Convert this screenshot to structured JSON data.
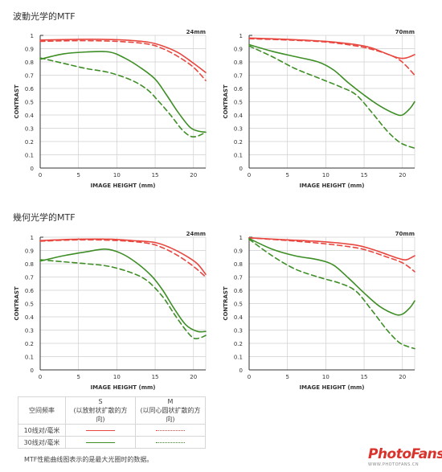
{
  "sections": [
    {
      "title": "波動光学的MTF"
    },
    {
      "title": "幾何光学的MTF"
    }
  ],
  "colors": {
    "s10": "#e8473f",
    "m10": "#e8473f",
    "s30": "#3e8e26",
    "m30": "#3e8e26",
    "grid": "#cfcfcf",
    "axis": "#333333"
  },
  "chart_data": [
    {
      "type": "line",
      "title": "24mm",
      "xlabel": "IMAGE HEIGHT (mm)",
      "ylabel": "CONTRAST",
      "xlim": [
        0,
        21.6
      ],
      "ylim": [
        0,
        1
      ],
      "xticks": [
        0,
        5,
        10,
        15,
        20
      ],
      "yticks": [
        0,
        0.1,
        0.2,
        0.3,
        0.4,
        0.5,
        0.6,
        0.7,
        0.8,
        0.9,
        1
      ],
      "series": [
        {
          "name": "10线对/毫米 S",
          "style": "solid",
          "colorKey": "s10",
          "points": [
            [
              0,
              0.965
            ],
            [
              5,
              0.97
            ],
            [
              8,
              0.97
            ],
            [
              11,
              0.965
            ],
            [
              14,
              0.95
            ],
            [
              16,
              0.92
            ],
            [
              18,
              0.87
            ],
            [
              20,
              0.79
            ],
            [
              21.6,
              0.72
            ]
          ]
        },
        {
          "name": "10线对/毫米 M",
          "style": "dashed",
          "colorKey": "m10",
          "points": [
            [
              0,
              0.955
            ],
            [
              5,
              0.96
            ],
            [
              10,
              0.955
            ],
            [
              14,
              0.935
            ],
            [
              16,
              0.9
            ],
            [
              18,
              0.84
            ],
            [
              20,
              0.76
            ],
            [
              21.6,
              0.66
            ]
          ]
        },
        {
          "name": "30线对/毫米 S",
          "style": "solid",
          "colorKey": "s30",
          "points": [
            [
              0,
              0.82
            ],
            [
              3,
              0.86
            ],
            [
              6,
              0.875
            ],
            [
              9,
              0.875
            ],
            [
              11,
              0.83
            ],
            [
              13,
              0.76
            ],
            [
              15,
              0.67
            ],
            [
              16.5,
              0.55
            ],
            [
              18,
              0.42
            ],
            [
              19.5,
              0.31
            ],
            [
              20.5,
              0.28
            ],
            [
              21.6,
              0.27
            ]
          ]
        },
        {
          "name": "30线对/毫米 M",
          "style": "dashed",
          "colorKey": "m30",
          "points": [
            [
              0,
              0.83
            ],
            [
              3,
              0.79
            ],
            [
              6,
              0.75
            ],
            [
              9,
              0.72
            ],
            [
              12,
              0.66
            ],
            [
              14,
              0.59
            ],
            [
              15.5,
              0.5
            ],
            [
              17,
              0.4
            ],
            [
              18.5,
              0.29
            ],
            [
              19.6,
              0.24
            ],
            [
              20.5,
              0.24
            ],
            [
              21.6,
              0.27
            ]
          ]
        }
      ]
    },
    {
      "type": "line",
      "title": "70mm",
      "xlabel": "IMAGE HEIGHT (mm)",
      "ylabel": "CONTRAST",
      "xlim": [
        0,
        21.6
      ],
      "ylim": [
        0,
        1
      ],
      "xticks": [
        0,
        5,
        10,
        15,
        20
      ],
      "yticks": [
        0,
        0.1,
        0.2,
        0.3,
        0.4,
        0.5,
        0.6,
        0.7,
        0.8,
        0.9,
        1
      ],
      "series": [
        {
          "name": "10线对/毫米 S",
          "style": "solid",
          "colorKey": "s10",
          "points": [
            [
              0,
              0.98
            ],
            [
              5,
              0.97
            ],
            [
              10,
              0.955
            ],
            [
              14,
              0.93
            ],
            [
              16,
              0.905
            ],
            [
              18,
              0.86
            ],
            [
              19.5,
              0.83
            ],
            [
              20.5,
              0.83
            ],
            [
              21.6,
              0.855
            ]
          ]
        },
        {
          "name": "10线对/毫米 M",
          "style": "dashed",
          "colorKey": "m10",
          "points": [
            [
              0,
              0.975
            ],
            [
              5,
              0.965
            ],
            [
              10,
              0.95
            ],
            [
              14,
              0.92
            ],
            [
              16,
              0.895
            ],
            [
              18,
              0.86
            ],
            [
              19.5,
              0.82
            ],
            [
              20.5,
              0.77
            ],
            [
              21.6,
              0.7
            ]
          ]
        },
        {
          "name": "30线对/毫米 S",
          "style": "solid",
          "colorKey": "s30",
          "points": [
            [
              0,
              0.93
            ],
            [
              3,
              0.88
            ],
            [
              6,
              0.84
            ],
            [
              9,
              0.8
            ],
            [
              11,
              0.74
            ],
            [
              13,
              0.64
            ],
            [
              15,
              0.55
            ],
            [
              17,
              0.47
            ],
            [
              19,
              0.41
            ],
            [
              20,
              0.4
            ],
            [
              21,
              0.45
            ],
            [
              21.6,
              0.5
            ]
          ]
        },
        {
          "name": "30线对/毫米 M",
          "style": "dashed",
          "colorKey": "m30",
          "points": [
            [
              0,
              0.92
            ],
            [
              3,
              0.84
            ],
            [
              6,
              0.75
            ],
            [
              9,
              0.68
            ],
            [
              12,
              0.61
            ],
            [
              14,
              0.55
            ],
            [
              16,
              0.42
            ],
            [
              18,
              0.28
            ],
            [
              19.5,
              0.2
            ],
            [
              20.5,
              0.17
            ],
            [
              21.6,
              0.15
            ]
          ]
        }
      ]
    },
    {
      "type": "line",
      "title": "24mm",
      "xlabel": "IMAGE HEIGHT (mm)",
      "ylabel": "CONTRAST",
      "xlim": [
        0,
        21.6
      ],
      "ylim": [
        0,
        1
      ],
      "xticks": [
        0,
        5,
        10,
        15,
        20
      ],
      "yticks": [
        0,
        0.1,
        0.2,
        0.3,
        0.4,
        0.5,
        0.6,
        0.7,
        0.8,
        0.9,
        1
      ],
      "series": [
        {
          "name": "10线对/毫米 S",
          "style": "solid",
          "colorKey": "s10",
          "points": [
            [
              0,
              0.975
            ],
            [
              5,
              0.985
            ],
            [
              9,
              0.985
            ],
            [
              12,
              0.975
            ],
            [
              15,
              0.96
            ],
            [
              17,
              0.92
            ],
            [
              19,
              0.86
            ],
            [
              20.5,
              0.8
            ],
            [
              21.6,
              0.72
            ]
          ]
        },
        {
          "name": "10线对/毫米 M",
          "style": "dashed",
          "colorKey": "m10",
          "points": [
            [
              0,
              0.97
            ],
            [
              5,
              0.98
            ],
            [
              10,
              0.975
            ],
            [
              14,
              0.955
            ],
            [
              16,
              0.92
            ],
            [
              18,
              0.86
            ],
            [
              20,
              0.78
            ],
            [
              21.6,
              0.7
            ]
          ]
        },
        {
          "name": "30线对/毫米 S",
          "style": "solid",
          "colorKey": "s30",
          "points": [
            [
              0,
              0.82
            ],
            [
              3,
              0.86
            ],
            [
              6,
              0.89
            ],
            [
              8.5,
              0.91
            ],
            [
              10.5,
              0.88
            ],
            [
              12.5,
              0.81
            ],
            [
              14.5,
              0.71
            ],
            [
              16,
              0.6
            ],
            [
              17.5,
              0.46
            ],
            [
              19,
              0.34
            ],
            [
              20.5,
              0.29
            ],
            [
              21.6,
              0.29
            ]
          ]
        },
        {
          "name": "30线对/毫米 M",
          "style": "dashed",
          "colorKey": "m30",
          "points": [
            [
              0,
              0.83
            ],
            [
              3,
              0.815
            ],
            [
              6,
              0.8
            ],
            [
              9,
              0.78
            ],
            [
              12,
              0.73
            ],
            [
              14,
              0.67
            ],
            [
              16,
              0.55
            ],
            [
              17.5,
              0.42
            ],
            [
              19,
              0.3
            ],
            [
              20,
              0.24
            ],
            [
              20.8,
              0.24
            ],
            [
              21.6,
              0.26
            ]
          ]
        }
      ]
    },
    {
      "type": "line",
      "title": "70mm",
      "xlabel": "IMAGE HEIGHT (mm)",
      "ylabel": "CONTRAST",
      "xlim": [
        0,
        21.6
      ],
      "ylim": [
        0,
        1
      ],
      "xticks": [
        0,
        5,
        10,
        15,
        20
      ],
      "yticks": [
        0,
        0.1,
        0.2,
        0.3,
        0.4,
        0.5,
        0.6,
        0.7,
        0.8,
        0.9,
        1
      ],
      "series": [
        {
          "name": "10线对/毫米 S",
          "style": "solid",
          "colorKey": "s10",
          "points": [
            [
              0,
              0.995
            ],
            [
              5,
              0.98
            ],
            [
              10,
              0.965
            ],
            [
              14,
              0.94
            ],
            [
              16,
              0.91
            ],
            [
              18,
              0.87
            ],
            [
              19.5,
              0.84
            ],
            [
              20.5,
              0.83
            ],
            [
              21.6,
              0.86
            ]
          ]
        },
        {
          "name": "10线对/毫米 M",
          "style": "dashed",
          "colorKey": "m10",
          "points": [
            [
              0,
              0.995
            ],
            [
              5,
              0.975
            ],
            [
              10,
              0.95
            ],
            [
              14,
              0.92
            ],
            [
              16,
              0.89
            ],
            [
              18,
              0.85
            ],
            [
              19.5,
              0.82
            ],
            [
              20.5,
              0.79
            ],
            [
              21.6,
              0.74
            ]
          ]
        },
        {
          "name": "30线对/毫米 S",
          "style": "solid",
          "colorKey": "s30",
          "points": [
            [
              0,
              0.99
            ],
            [
              3,
              0.91
            ],
            [
              6,
              0.86
            ],
            [
              9,
              0.83
            ],
            [
              11,
              0.79
            ],
            [
              13,
              0.69
            ],
            [
              15,
              0.58
            ],
            [
              17,
              0.48
            ],
            [
              19,
              0.42
            ],
            [
              20,
              0.42
            ],
            [
              21,
              0.47
            ],
            [
              21.6,
              0.52
            ]
          ]
        },
        {
          "name": "30线对/毫米 M",
          "style": "dashed",
          "colorKey": "m30",
          "points": [
            [
              0,
              0.985
            ],
            [
              3,
              0.86
            ],
            [
              6,
              0.76
            ],
            [
              9,
              0.7
            ],
            [
              12,
              0.65
            ],
            [
              14,
              0.59
            ],
            [
              16,
              0.45
            ],
            [
              18,
              0.3
            ],
            [
              19.5,
              0.21
            ],
            [
              20.5,
              0.18
            ],
            [
              21.6,
              0.16
            ]
          ]
        }
      ]
    }
  ],
  "legend": {
    "header_label": "空间频率",
    "s_title": "S",
    "s_sub": "(以放射状扩散的方向)",
    "m_title": "M",
    "m_sub": "(以同心圆状扩散的方向)",
    "row1_label": "10线对/毫米",
    "row2_label": "30线对/毫米"
  },
  "note": "MTF性能曲线图表示的是最大光圈时的数据。",
  "logo": {
    "main": "PhotoFans",
    "sub": "WWW.PHOTOFANS.CN"
  }
}
